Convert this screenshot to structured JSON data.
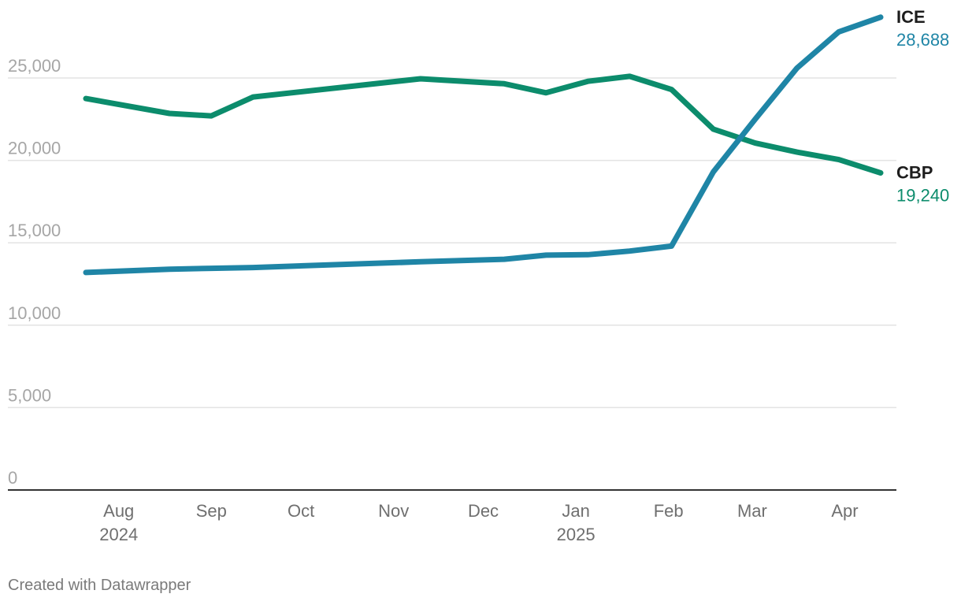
{
  "chart_data": {
    "type": "line",
    "title": "",
    "xlabel": "",
    "ylabel": "",
    "ylim": [
      0,
      30000
    ],
    "y_ticks": [
      {
        "value": 0,
        "label": "0"
      },
      {
        "value": 5000,
        "label": "5,000"
      },
      {
        "value": 10000,
        "label": "10,000"
      },
      {
        "value": 15000,
        "label": "15,000"
      },
      {
        "value": 20000,
        "label": "20,000"
      },
      {
        "value": 25000,
        "label": "25,000"
      }
    ],
    "x_range": [
      "2024-07-07",
      "2025-04-14"
    ],
    "x_ticks": [
      {
        "date": "2024-08-01",
        "label": "Aug",
        "year": "2024"
      },
      {
        "date": "2024-09-01",
        "label": "Sep",
        "year": ""
      },
      {
        "date": "2024-10-01",
        "label": "Oct",
        "year": ""
      },
      {
        "date": "2024-11-01",
        "label": "Nov",
        "year": ""
      },
      {
        "date": "2024-12-01",
        "label": "Dec",
        "year": ""
      },
      {
        "date": "2025-01-01",
        "label": "Jan",
        "year": "2025"
      },
      {
        "date": "2025-02-01",
        "label": "Feb",
        "year": ""
      },
      {
        "date": "2025-03-01",
        "label": "Mar",
        "year": ""
      },
      {
        "date": "2025-04-01",
        "label": "Apr",
        "year": ""
      }
    ],
    "grid": true,
    "legend": "inline labels at line ends (right)",
    "series": [
      {
        "name": "ICE",
        "end_label": "28,688",
        "color": "#1f85a6",
        "points": [
          {
            "x": "2024-07-21",
            "y": 13200
          },
          {
            "x": "2024-08-18",
            "y": 13400
          },
          {
            "x": "2024-09-01",
            "y": 13450
          },
          {
            "x": "2024-09-15",
            "y": 13500
          },
          {
            "x": "2024-11-10",
            "y": 13850
          },
          {
            "x": "2024-12-08",
            "y": 14000
          },
          {
            "x": "2024-12-22",
            "y": 14250
          },
          {
            "x": "2025-01-05",
            "y": 14280
          },
          {
            "x": "2025-01-19",
            "y": 14500
          },
          {
            "x": "2025-02-02",
            "y": 14800
          },
          {
            "x": "2025-02-16",
            "y": 19300
          },
          {
            "x": "2025-03-02",
            "y": 22500
          },
          {
            "x": "2025-03-16",
            "y": 25600
          },
          {
            "x": "2025-03-30",
            "y": 27800
          },
          {
            "x": "2025-04-13",
            "y": 28688
          }
        ]
      },
      {
        "name": "CBP",
        "end_label": "19,240",
        "color": "#0c8c6c",
        "points": [
          {
            "x": "2024-07-21",
            "y": 23750
          },
          {
            "x": "2024-08-18",
            "y": 22850
          },
          {
            "x": "2024-09-01",
            "y": 22700
          },
          {
            "x": "2024-09-15",
            "y": 23850
          },
          {
            "x": "2024-11-10",
            "y": 24950
          },
          {
            "x": "2024-12-08",
            "y": 24650
          },
          {
            "x": "2024-12-22",
            "y": 24100
          },
          {
            "x": "2025-01-05",
            "y": 24800
          },
          {
            "x": "2025-01-19",
            "y": 25100
          },
          {
            "x": "2025-02-02",
            "y": 24300
          },
          {
            "x": "2025-02-16",
            "y": 21900
          },
          {
            "x": "2025-03-02",
            "y": 21050
          },
          {
            "x": "2025-03-16",
            "y": 20500
          },
          {
            "x": "2025-03-30",
            "y": 20050
          },
          {
            "x": "2025-04-13",
            "y": 19240
          }
        ]
      }
    ]
  },
  "footer": {
    "credit": "Created with Datawrapper"
  }
}
